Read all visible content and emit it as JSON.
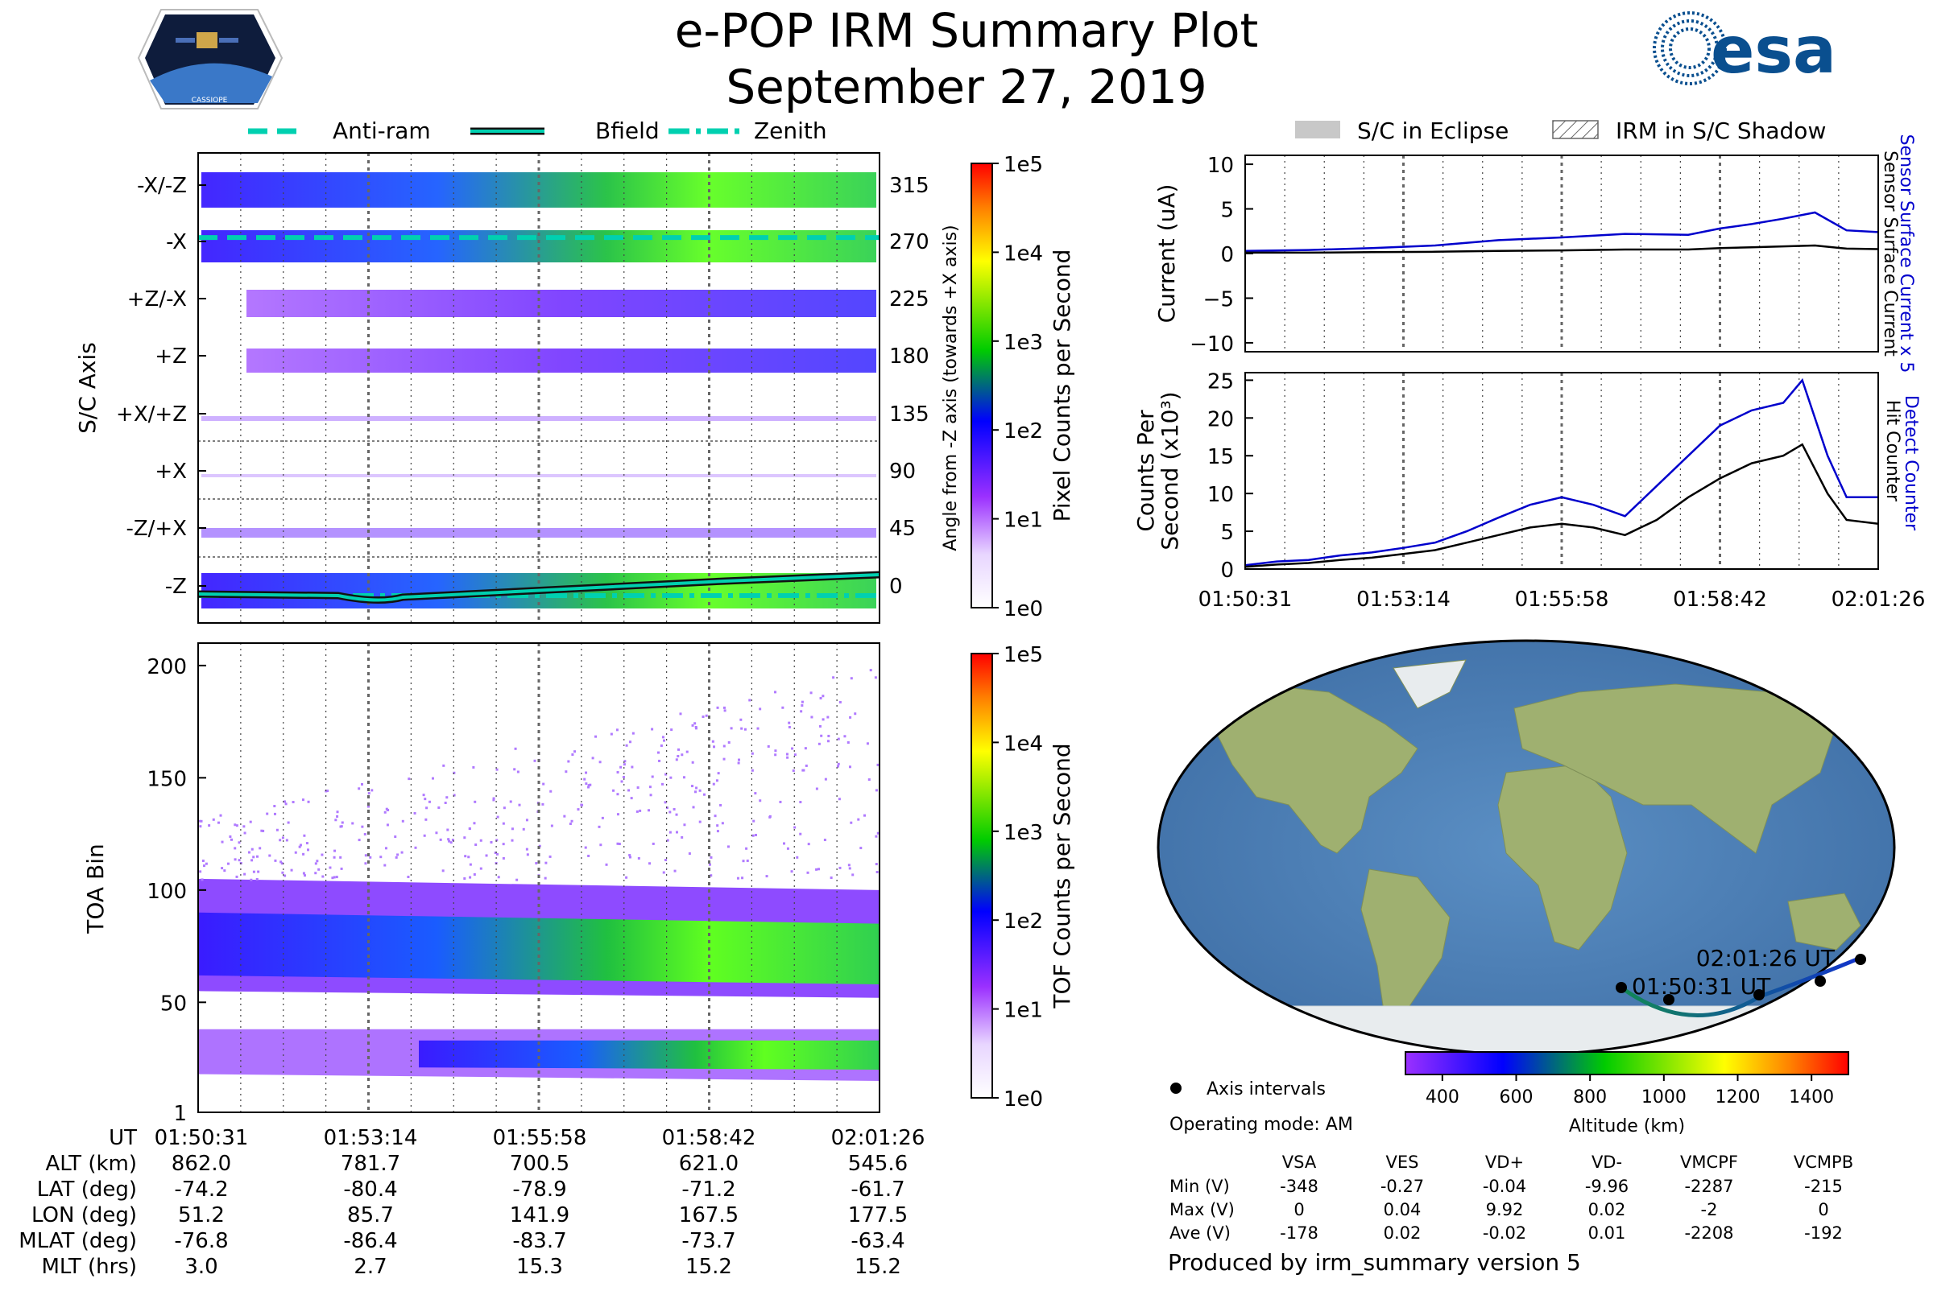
{
  "header": {
    "title": "e-POP IRM Summary Plot",
    "date": "September 27, 2019",
    "mission_patch_text": "CASSIOPE",
    "esa_logo_text": "esa"
  },
  "legend_top": [
    {
      "label": "Anti-ram",
      "style": "dashed"
    },
    {
      "label": "Bfield",
      "style": "solid"
    },
    {
      "label": "Zenith",
      "style": "dashdot"
    }
  ],
  "legend_right": [
    {
      "label": "S/C in Eclipse",
      "style": "gray-fill"
    },
    {
      "label": "IRM in S/C Shadow",
      "style": "hatched"
    }
  ],
  "time_ticks": [
    "01:50:31",
    "01:53:14",
    "01:55:58",
    "01:58:42",
    "02:01:26"
  ],
  "colors": {
    "sensor_surface_current_x5": "#0000cc",
    "hit_counter": "#000000",
    "bfield": "#00d0b0",
    "track_start": "#118855",
    "track_end": "#1133cc"
  },
  "chart_data": [
    {
      "id": "pixel-spectrogram",
      "type": "heatmap",
      "ylabel": "S/C Axis",
      "ylabel_right": "Angle from -Z axis (towards +X axis)",
      "y_ticks_left": [
        "-X/-Z",
        "-X",
        "+Z/-X",
        "+Z",
        "+X/+Z",
        "+X",
        "-Z/+X",
        "-Z"
      ],
      "y_ticks_right": [
        "315",
        "270",
        "225",
        "180",
        "135",
        "90",
        "45",
        "0"
      ],
      "colorbar": {
        "label": "Pixel Counts per Second",
        "ticks": [
          "1e5",
          "1e4",
          "1e3",
          "1e2",
          "1e1",
          "1e0"
        ],
        "scale": "log",
        "range": [
          1,
          100000
        ]
      },
      "lines": [
        {
          "name": "Anti-ram",
          "style": "dashed",
          "angle": 270
        },
        {
          "name": "Bfield",
          "style": "solid",
          "angle_start": 0,
          "angle_end": 10
        },
        {
          "name": "Zenith",
          "style": "dashdot",
          "angle": 0
        }
      ]
    },
    {
      "id": "toa-spectrogram",
      "type": "heatmap",
      "ylabel": "TOA Bin",
      "y_ticks": [
        "200",
        "150",
        "100",
        "50",
        "1"
      ],
      "ylim": [
        1,
        210
      ],
      "colorbar": {
        "label": "TOF Counts per Second",
        "ticks": [
          "1e5",
          "1e4",
          "1e3",
          "1e2",
          "1e1",
          "1e0"
        ],
        "scale": "log",
        "range": [
          1,
          100000
        ]
      },
      "bands": [
        {
          "center_bin": 75,
          "note": "main band"
        },
        {
          "center_bin": 27,
          "note": "lower band"
        }
      ]
    },
    {
      "id": "current-plot",
      "type": "line",
      "ylabel": "Current (uA)",
      "ylim": [
        -11,
        11
      ],
      "y_ticks": [
        "10",
        "5",
        "0",
        "−5",
        "−10"
      ],
      "right_labels": [
        "Sensor Surface Current x 5",
        "Sensor Surface Current"
      ],
      "x": [
        0,
        0.1,
        0.2,
        0.3,
        0.4,
        0.5,
        0.6,
        0.7,
        0.75,
        0.8,
        0.85,
        0.9,
        0.95,
        1.0
      ],
      "series": [
        {
          "name": "Sensor Surface Current x 5",
          "values": [
            0.3,
            0.4,
            0.6,
            0.9,
            1.5,
            1.8,
            2.2,
            2.1,
            2.8,
            3.3,
            3.9,
            4.6,
            2.6,
            2.4
          ]
        },
        {
          "name": "Sensor Surface Current",
          "values": [
            0.1,
            0.1,
            0.15,
            0.2,
            0.3,
            0.35,
            0.45,
            0.45,
            0.6,
            0.7,
            0.8,
            0.9,
            0.55,
            0.5
          ]
        }
      ]
    },
    {
      "id": "counts-plot",
      "type": "line",
      "ylabel": "Counts Per Second (x10³)",
      "ylim": [
        0,
        26
      ],
      "y_ticks": [
        "25",
        "20",
        "15",
        "10",
        "5",
        "0"
      ],
      "right_labels": [
        "Detect Counter",
        "Hit Counter"
      ],
      "x": [
        0,
        0.05,
        0.1,
        0.15,
        0.2,
        0.25,
        0.3,
        0.35,
        0.4,
        0.45,
        0.5,
        0.55,
        0.6,
        0.65,
        0.7,
        0.75,
        0.8,
        0.85,
        0.88,
        0.92,
        0.95,
        1.0
      ],
      "series": [
        {
          "name": "Detect Counter",
          "values": [
            0.5,
            1,
            1.2,
            1.8,
            2.2,
            2.8,
            3.5,
            5,
            6.8,
            8.5,
            9.5,
            8.5,
            7,
            11,
            15,
            19,
            21,
            22,
            25,
            15,
            9.5,
            9.5
          ]
        },
        {
          "name": "Hit Counter",
          "values": [
            0.3,
            0.6,
            0.8,
            1.2,
            1.5,
            2,
            2.5,
            3.5,
            4.5,
            5.5,
            6,
            5.5,
            4.5,
            6.5,
            9.5,
            12,
            14,
            15,
            16.5,
            10,
            6.5,
            6
          ]
        }
      ]
    }
  ],
  "map": {
    "track_labels": [
      "02:01:26 UT",
      "01:50:31 UT"
    ],
    "altitude_colorbar": {
      "label": "Altitude (km)",
      "ticks": [
        "400",
        "600",
        "800",
        "1000",
        "1200",
        "1400"
      ],
      "range": [
        300,
        1500
      ]
    },
    "axis_intervals_label": "Axis intervals",
    "operating_mode": "Operating mode: AM"
  },
  "ephemeris": {
    "rows": [
      {
        "label": "UT",
        "values": [
          "01:50:31",
          "01:53:14",
          "01:55:58",
          "01:58:42",
          "02:01:26"
        ]
      },
      {
        "label": "ALT (km)",
        "values": [
          "862.0",
          "781.7",
          "700.5",
          "621.0",
          "545.6"
        ]
      },
      {
        "label": "LAT (deg)",
        "values": [
          "-74.2",
          "-80.4",
          "-78.9",
          "-71.2",
          "-61.7"
        ]
      },
      {
        "label": "LON (deg)",
        "values": [
          "51.2",
          "85.7",
          "141.9",
          "167.5",
          "177.5"
        ]
      },
      {
        "label": "MLAT (deg)",
        "values": [
          "-76.8",
          "-86.4",
          "-83.7",
          "-73.7",
          "-63.4"
        ]
      },
      {
        "label": "MLT (hrs)",
        "values": [
          "3.0",
          "2.7",
          "15.3",
          "15.2",
          "15.2"
        ]
      }
    ]
  },
  "voltages": {
    "columns": [
      "VSA",
      "VES",
      "VD+",
      "VD-",
      "VMCPF",
      "VCMPB"
    ],
    "rows": [
      {
        "label": "Min (V)",
        "values": [
          "-348",
          "-0.27",
          "-0.04",
          "-9.96",
          "-2287",
          "-215"
        ]
      },
      {
        "label": "Max (V)",
        "values": [
          "0",
          "0.04",
          "9.92",
          "0.02",
          "-2",
          "0"
        ]
      },
      {
        "label": "Ave (V)",
        "values": [
          "-178",
          "0.02",
          "-0.02",
          "0.01",
          "-2208",
          "-192"
        ]
      }
    ]
  },
  "footer": {
    "produced_by": "Produced by irm_summary version 5"
  }
}
